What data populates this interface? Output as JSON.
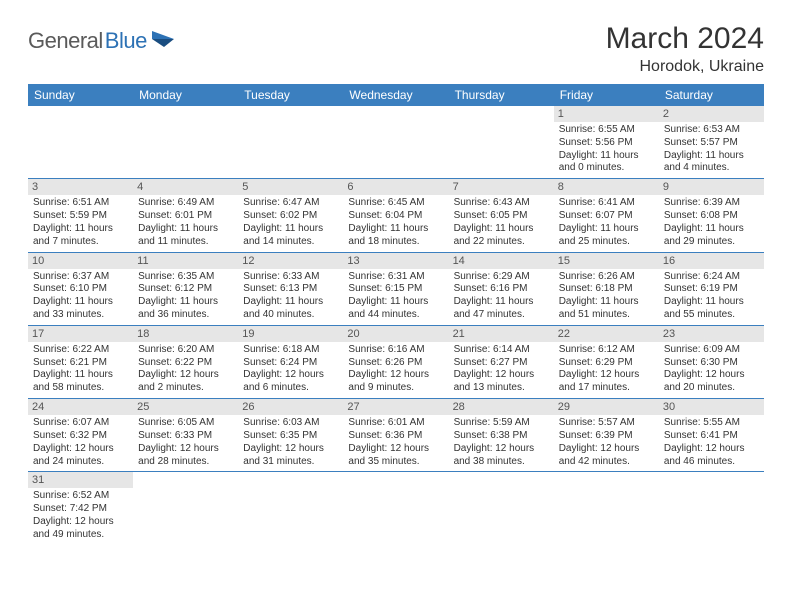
{
  "logo": {
    "part1": "General",
    "part2": "Blue"
  },
  "title": "March 2024",
  "location": "Horodok, Ukraine",
  "colors": {
    "header_bg": "#3b7fbf",
    "header_text": "#ffffff",
    "daynum_bg": "#e6e6e6",
    "border": "#3b7fbf",
    "logo_gray": "#5a5a5a",
    "logo_blue": "#2d72b5"
  },
  "weekdays": [
    "Sunday",
    "Monday",
    "Tuesday",
    "Wednesday",
    "Thursday",
    "Friday",
    "Saturday"
  ],
  "weeks": [
    [
      {
        "n": "",
        "sr": "",
        "ss": "",
        "dl1": "",
        "dl2": ""
      },
      {
        "n": "",
        "sr": "",
        "ss": "",
        "dl1": "",
        "dl2": ""
      },
      {
        "n": "",
        "sr": "",
        "ss": "",
        "dl1": "",
        "dl2": ""
      },
      {
        "n": "",
        "sr": "",
        "ss": "",
        "dl1": "",
        "dl2": ""
      },
      {
        "n": "",
        "sr": "",
        "ss": "",
        "dl1": "",
        "dl2": ""
      },
      {
        "n": "1",
        "sr": "Sunrise: 6:55 AM",
        "ss": "Sunset: 5:56 PM",
        "dl1": "Daylight: 11 hours",
        "dl2": "and 0 minutes."
      },
      {
        "n": "2",
        "sr": "Sunrise: 6:53 AM",
        "ss": "Sunset: 5:57 PM",
        "dl1": "Daylight: 11 hours",
        "dl2": "and 4 minutes."
      }
    ],
    [
      {
        "n": "3",
        "sr": "Sunrise: 6:51 AM",
        "ss": "Sunset: 5:59 PM",
        "dl1": "Daylight: 11 hours",
        "dl2": "and 7 minutes."
      },
      {
        "n": "4",
        "sr": "Sunrise: 6:49 AM",
        "ss": "Sunset: 6:01 PM",
        "dl1": "Daylight: 11 hours",
        "dl2": "and 11 minutes."
      },
      {
        "n": "5",
        "sr": "Sunrise: 6:47 AM",
        "ss": "Sunset: 6:02 PM",
        "dl1": "Daylight: 11 hours",
        "dl2": "and 14 minutes."
      },
      {
        "n": "6",
        "sr": "Sunrise: 6:45 AM",
        "ss": "Sunset: 6:04 PM",
        "dl1": "Daylight: 11 hours",
        "dl2": "and 18 minutes."
      },
      {
        "n": "7",
        "sr": "Sunrise: 6:43 AM",
        "ss": "Sunset: 6:05 PM",
        "dl1": "Daylight: 11 hours",
        "dl2": "and 22 minutes."
      },
      {
        "n": "8",
        "sr": "Sunrise: 6:41 AM",
        "ss": "Sunset: 6:07 PM",
        "dl1": "Daylight: 11 hours",
        "dl2": "and 25 minutes."
      },
      {
        "n": "9",
        "sr": "Sunrise: 6:39 AM",
        "ss": "Sunset: 6:08 PM",
        "dl1": "Daylight: 11 hours",
        "dl2": "and 29 minutes."
      }
    ],
    [
      {
        "n": "10",
        "sr": "Sunrise: 6:37 AM",
        "ss": "Sunset: 6:10 PM",
        "dl1": "Daylight: 11 hours",
        "dl2": "and 33 minutes."
      },
      {
        "n": "11",
        "sr": "Sunrise: 6:35 AM",
        "ss": "Sunset: 6:12 PM",
        "dl1": "Daylight: 11 hours",
        "dl2": "and 36 minutes."
      },
      {
        "n": "12",
        "sr": "Sunrise: 6:33 AM",
        "ss": "Sunset: 6:13 PM",
        "dl1": "Daylight: 11 hours",
        "dl2": "and 40 minutes."
      },
      {
        "n": "13",
        "sr": "Sunrise: 6:31 AM",
        "ss": "Sunset: 6:15 PM",
        "dl1": "Daylight: 11 hours",
        "dl2": "and 44 minutes."
      },
      {
        "n": "14",
        "sr": "Sunrise: 6:29 AM",
        "ss": "Sunset: 6:16 PM",
        "dl1": "Daylight: 11 hours",
        "dl2": "and 47 minutes."
      },
      {
        "n": "15",
        "sr": "Sunrise: 6:26 AM",
        "ss": "Sunset: 6:18 PM",
        "dl1": "Daylight: 11 hours",
        "dl2": "and 51 minutes."
      },
      {
        "n": "16",
        "sr": "Sunrise: 6:24 AM",
        "ss": "Sunset: 6:19 PM",
        "dl1": "Daylight: 11 hours",
        "dl2": "and 55 minutes."
      }
    ],
    [
      {
        "n": "17",
        "sr": "Sunrise: 6:22 AM",
        "ss": "Sunset: 6:21 PM",
        "dl1": "Daylight: 11 hours",
        "dl2": "and 58 minutes."
      },
      {
        "n": "18",
        "sr": "Sunrise: 6:20 AM",
        "ss": "Sunset: 6:22 PM",
        "dl1": "Daylight: 12 hours",
        "dl2": "and 2 minutes."
      },
      {
        "n": "19",
        "sr": "Sunrise: 6:18 AM",
        "ss": "Sunset: 6:24 PM",
        "dl1": "Daylight: 12 hours",
        "dl2": "and 6 minutes."
      },
      {
        "n": "20",
        "sr": "Sunrise: 6:16 AM",
        "ss": "Sunset: 6:26 PM",
        "dl1": "Daylight: 12 hours",
        "dl2": "and 9 minutes."
      },
      {
        "n": "21",
        "sr": "Sunrise: 6:14 AM",
        "ss": "Sunset: 6:27 PM",
        "dl1": "Daylight: 12 hours",
        "dl2": "and 13 minutes."
      },
      {
        "n": "22",
        "sr": "Sunrise: 6:12 AM",
        "ss": "Sunset: 6:29 PM",
        "dl1": "Daylight: 12 hours",
        "dl2": "and 17 minutes."
      },
      {
        "n": "23",
        "sr": "Sunrise: 6:09 AM",
        "ss": "Sunset: 6:30 PM",
        "dl1": "Daylight: 12 hours",
        "dl2": "and 20 minutes."
      }
    ],
    [
      {
        "n": "24",
        "sr": "Sunrise: 6:07 AM",
        "ss": "Sunset: 6:32 PM",
        "dl1": "Daylight: 12 hours",
        "dl2": "and 24 minutes."
      },
      {
        "n": "25",
        "sr": "Sunrise: 6:05 AM",
        "ss": "Sunset: 6:33 PM",
        "dl1": "Daylight: 12 hours",
        "dl2": "and 28 minutes."
      },
      {
        "n": "26",
        "sr": "Sunrise: 6:03 AM",
        "ss": "Sunset: 6:35 PM",
        "dl1": "Daylight: 12 hours",
        "dl2": "and 31 minutes."
      },
      {
        "n": "27",
        "sr": "Sunrise: 6:01 AM",
        "ss": "Sunset: 6:36 PM",
        "dl1": "Daylight: 12 hours",
        "dl2": "and 35 minutes."
      },
      {
        "n": "28",
        "sr": "Sunrise: 5:59 AM",
        "ss": "Sunset: 6:38 PM",
        "dl1": "Daylight: 12 hours",
        "dl2": "and 38 minutes."
      },
      {
        "n": "29",
        "sr": "Sunrise: 5:57 AM",
        "ss": "Sunset: 6:39 PM",
        "dl1": "Daylight: 12 hours",
        "dl2": "and 42 minutes."
      },
      {
        "n": "30",
        "sr": "Sunrise: 5:55 AM",
        "ss": "Sunset: 6:41 PM",
        "dl1": "Daylight: 12 hours",
        "dl2": "and 46 minutes."
      }
    ],
    [
      {
        "n": "31",
        "sr": "Sunrise: 6:52 AM",
        "ss": "Sunset: 7:42 PM",
        "dl1": "Daylight: 12 hours",
        "dl2": "and 49 minutes."
      },
      {
        "n": "",
        "sr": "",
        "ss": "",
        "dl1": "",
        "dl2": ""
      },
      {
        "n": "",
        "sr": "",
        "ss": "",
        "dl1": "",
        "dl2": ""
      },
      {
        "n": "",
        "sr": "",
        "ss": "",
        "dl1": "",
        "dl2": ""
      },
      {
        "n": "",
        "sr": "",
        "ss": "",
        "dl1": "",
        "dl2": ""
      },
      {
        "n": "",
        "sr": "",
        "ss": "",
        "dl1": "",
        "dl2": ""
      },
      {
        "n": "",
        "sr": "",
        "ss": "",
        "dl1": "",
        "dl2": ""
      }
    ]
  ]
}
